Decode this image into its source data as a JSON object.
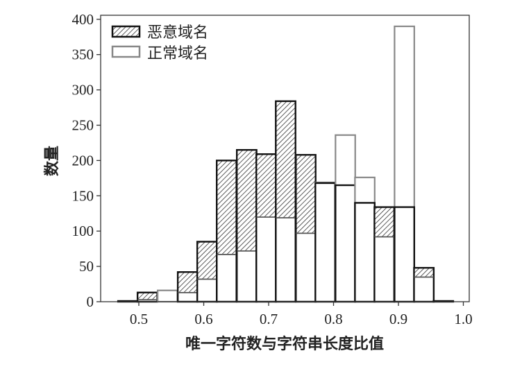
{
  "chart_data": {
    "type": "bar",
    "subtype": "overlapping histogram",
    "xlabel": "唯一字符数与字符串长度比值",
    "ylabel": "数量",
    "xlim": [
      0.45,
      1.0
    ],
    "ylim": [
      0,
      410
    ],
    "xticks": [
      "0.5",
      "0.6",
      "0.7",
      "0.8",
      "0.9",
      "1.0"
    ],
    "yticks": [
      "0",
      "50",
      "100",
      "150",
      "200",
      "250",
      "300",
      "350",
      "400"
    ],
    "grid": false,
    "legend_position": "top-left",
    "bin_width": 0.0304,
    "bin_starts": [
      0.468,
      0.498,
      0.529,
      0.56,
      0.59,
      0.62,
      0.651,
      0.681,
      0.711,
      0.742,
      0.772,
      0.803,
      0.833,
      0.863,
      0.894,
      0.924,
      0.954
    ],
    "series": [
      {
        "name": "恶意域名",
        "pattern": "hatched",
        "color": "#000000",
        "values": [
          1,
          13,
          0,
          42,
          85,
          200,
          215,
          209,
          284,
          208,
          168,
          165,
          140,
          134,
          134,
          48,
          1
        ]
      },
      {
        "name": "正常域名",
        "pattern": "white",
        "color": "#888888",
        "values": [
          0,
          3,
          16,
          13,
          32,
          67,
          72,
          120,
          119,
          97,
          169,
          236,
          176,
          92,
          390,
          35,
          0
        ]
      }
    ]
  }
}
